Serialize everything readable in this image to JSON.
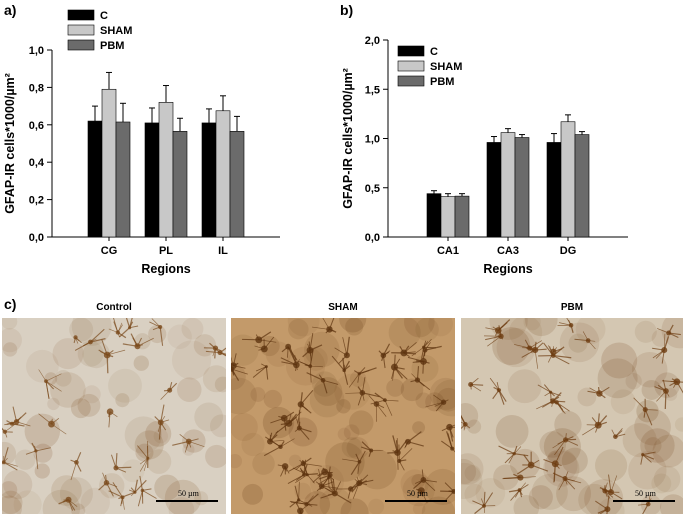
{
  "chart_data": [
    {
      "type": "bar",
      "panel_label": "a)",
      "categories": [
        "CG",
        "PL",
        "IL"
      ],
      "series": [
        {
          "name": "C",
          "color": "#000000",
          "values": [
            0.62,
            0.61,
            0.61
          ],
          "errors": [
            0.08,
            0.08,
            0.075
          ]
        },
        {
          "name": "SHAM",
          "color": "#c8c8c8",
          "values": [
            0.79,
            0.72,
            0.675
          ],
          "errors": [
            0.09,
            0.09,
            0.08
          ]
        },
        {
          "name": "PBM",
          "color": "#6b6b6b",
          "values": [
            0.615,
            0.565,
            0.565
          ],
          "errors": [
            0.1,
            0.07,
            0.08
          ]
        }
      ],
      "xlabel": "Regions",
      "ylabel": "GFAP-IR cells*1000/µm²",
      "ylim": [
        0,
        1.0
      ],
      "yticks": [
        "0,0",
        "0,2",
        "0,4",
        "0,6",
        "0,8",
        "1,0"
      ],
      "legend_position": "top-left",
      "grid": false
    },
    {
      "type": "bar",
      "panel_label": "b)",
      "categories": [
        "CA1",
        "CA3",
        "DG"
      ],
      "series": [
        {
          "name": "C",
          "color": "#000000",
          "values": [
            0.44,
            0.96,
            0.96
          ],
          "errors": [
            0.03,
            0.06,
            0.09
          ]
        },
        {
          "name": "SHAM",
          "color": "#c8c8c8",
          "values": [
            0.41,
            1.06,
            1.17
          ],
          "errors": [
            0.03,
            0.04,
            0.07
          ]
        },
        {
          "name": "PBM",
          "color": "#6b6b6b",
          "values": [
            0.415,
            1.01,
            1.04
          ],
          "errors": [
            0.025,
            0.03,
            0.03
          ]
        }
      ],
      "xlabel": "Regions",
      "ylabel": "GFAP-IR cells*1000/µm²",
      "ylim": [
        0,
        2.0
      ],
      "yticks": [
        "0,0",
        "0,5",
        "1,0",
        "1,5",
        "2,0"
      ],
      "legend_position": "top-left",
      "grid": false
    }
  ],
  "panel_c": {
    "label": "c)",
    "images": [
      {
        "title": "Control",
        "scale_label": "50 µm"
      },
      {
        "title": "SHAM",
        "scale_label": "50 µm"
      },
      {
        "title": "PBM",
        "scale_label": "50 µm"
      }
    ]
  }
}
